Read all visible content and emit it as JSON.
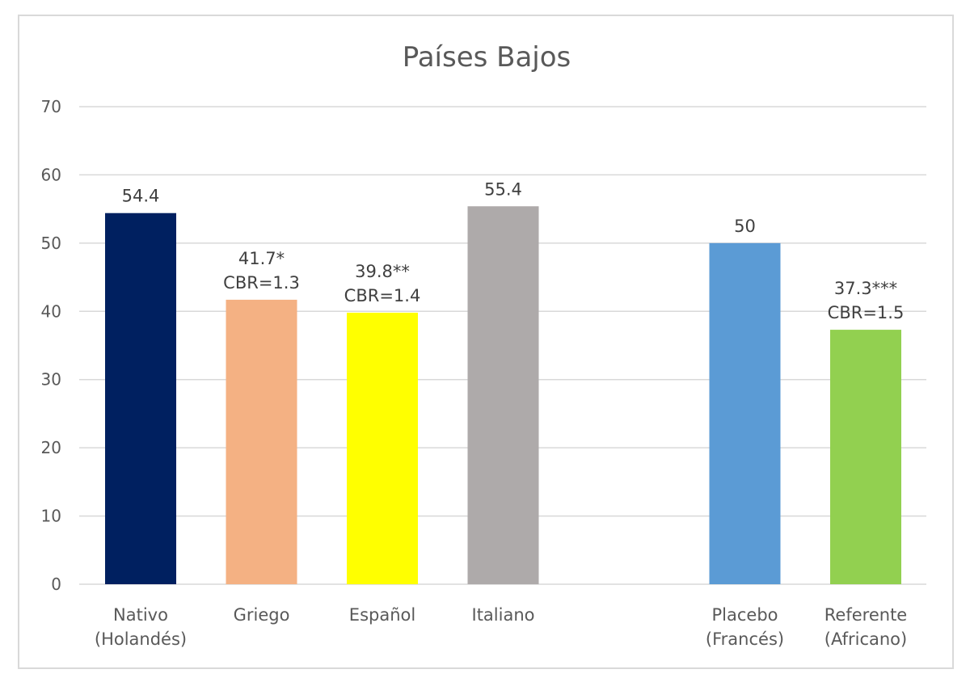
{
  "chart_data": {
    "type": "bar",
    "title": "Países Bajos",
    "xlabel": "",
    "ylabel": "",
    "ylim": [
      0,
      70
    ],
    "yticks": [
      "0",
      "10",
      "20",
      "30",
      "40",
      "50",
      "60",
      "70"
    ],
    "grid": true,
    "legend": "none",
    "categories": [
      {
        "lines": [
          "Nativo",
          "(Holandés)"
        ],
        "slot": 0
      },
      {
        "lines": [
          "Griego"
        ],
        "slot": 1
      },
      {
        "lines": [
          "Español"
        ],
        "slot": 2
      },
      {
        "lines": [
          "Italiano"
        ],
        "slot": 3
      },
      {
        "lines": [],
        "slot": 4
      },
      {
        "lines": [
          "Placebo",
          "(Francés)"
        ],
        "slot": 5
      },
      {
        "lines": [
          "Referente",
          "(Africano)"
        ],
        "slot": 6
      }
    ],
    "bars": [
      {
        "slot": 0,
        "value": 54.4,
        "color": "#002060",
        "labels": [
          "54.4"
        ]
      },
      {
        "slot": 1,
        "value": 41.7,
        "color": "#F4B183",
        "labels": [
          "41.7*",
          "CBR=1.3"
        ]
      },
      {
        "slot": 2,
        "value": 39.8,
        "color": "#FFFF00",
        "labels": [
          "39.8**",
          "CBR=1.4"
        ]
      },
      {
        "slot": 3,
        "value": 55.4,
        "color": "#AEAAAA",
        "labels": [
          "55.4"
        ]
      },
      {
        "slot": 5,
        "value": 50,
        "color": "#5B9BD5",
        "labels": [
          "50"
        ]
      },
      {
        "slot": 6,
        "value": 37.3,
        "color": "#92D050",
        "labels": [
          "37.3***",
          "CBR=1.5"
        ]
      }
    ]
  }
}
